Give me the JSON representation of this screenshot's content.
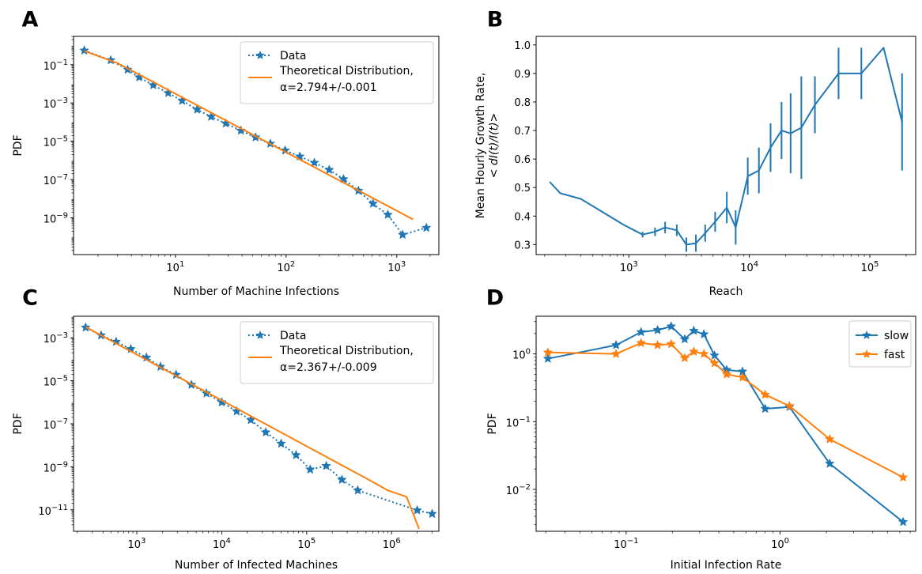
{
  "chart_data": [
    {
      "panel": "A",
      "type": "line",
      "xscale": "log",
      "yscale": "log",
      "xlim": [
        1.2,
        2400
      ],
      "ylim": [
        1.2e-11,
        3
      ],
      "xticks": [
        {
          "v": 10,
          "base": "10",
          "exp": "1"
        },
        {
          "v": 100,
          "base": "10",
          "exp": "2"
        },
        {
          "v": 1000,
          "base": "10",
          "exp": "3"
        }
      ],
      "yticks": [
        {
          "v": 0.1,
          "base": "10",
          "exp": "−1"
        },
        {
          "v": 0.001,
          "base": "10",
          "exp": "−3"
        },
        {
          "v": 1e-05,
          "base": "10",
          "exp": "−5"
        },
        {
          "v": 1e-07,
          "base": "10",
          "exp": "−7"
        },
        {
          "v": 1e-09,
          "base": "10",
          "exp": "−9"
        }
      ],
      "xlabel": "Number of Machine Infections",
      "ylabel": "PDF",
      "legend": {
        "position": "top-right",
        "entries": [
          "Data",
          "Theoretical Distribution,",
          "α=2.794+/-0.001"
        ]
      },
      "series": [
        {
          "name": "Data",
          "style": "dotted-star",
          "color": "#1f77b4",
          "x": [
            1.5,
            2.6,
            3.7,
            4.7,
            6.3,
            8.6,
            11.5,
            15.7,
            21,
            28.5,
            39,
            53,
            72,
            98,
            133,
            180,
            245,
            330,
            450,
            610,
            830,
            1130,
            1850
          ],
          "y": [
            0.55,
            0.17,
            0.055,
            0.022,
            0.0085,
            0.0033,
            0.0013,
            0.00045,
            0.00019,
            8.5e-05,
            3.6e-05,
            1.6e-05,
            7.5e-06,
            3.3e-06,
            1.6e-06,
            7.5e-07,
            3.2e-07,
            1.05e-07,
            2.6e-08,
            5.5e-09,
            1.45e-09,
            1.3e-10,
            3e-10
          ]
        },
        {
          "name": "Theoretical Distribution",
          "style": "solid",
          "color": "#ff7f0e",
          "x": [
            1.5,
            3,
            1400
          ],
          "y": [
            0.52,
            0.12,
            8.3e-10
          ]
        }
      ]
    },
    {
      "panel": "B",
      "type": "line",
      "xscale": "log",
      "yscale": "linear",
      "xlim": [
        170,
        240000
      ],
      "ylim": [
        0.265,
        1.03
      ],
      "xticks": [
        {
          "v": 1000,
          "base": "10",
          "exp": "3"
        },
        {
          "v": 10000,
          "base": "10",
          "exp": "4"
        },
        {
          "v": 100000,
          "base": "10",
          "exp": "5"
        }
      ],
      "yticks": [
        {
          "v": 0.3,
          "label": "0.3"
        },
        {
          "v": 0.4,
          "label": "0.4"
        },
        {
          "v": 0.5,
          "label": "0.5"
        },
        {
          "v": 0.6,
          "label": "0.6"
        },
        {
          "v": 0.7,
          "label": "0.7"
        },
        {
          "v": 0.8,
          "label": "0.8"
        },
        {
          "v": 0.9,
          "label": "0.9"
        },
        {
          "v": 1.0,
          "label": "1.0"
        }
      ],
      "xlabel": "Reach",
      "ylabel_line1": "Mean Hourly Growth Rate,",
      "ylabel_line2": "< dI(t)/I(t)>",
      "series": [
        {
          "name": "",
          "style": "solid-errorbar",
          "color": "#1f77b4",
          "x": [
            220,
            270,
            400,
            600,
            900,
            1300,
            1650,
            2000,
            2500,
            3000,
            3600,
            4300,
            5200,
            6500,
            7700,
            9700,
            12000,
            15000,
            18500,
            22000,
            27000,
            35000,
            55000,
            85000,
            130000,
            185000
          ],
          "y": [
            0.52,
            0.48,
            0.46,
            0.415,
            0.37,
            0.335,
            0.345,
            0.36,
            0.35,
            0.3,
            0.305,
            0.34,
            0.38,
            0.43,
            0.36,
            0.54,
            0.56,
            0.64,
            0.7,
            0.69,
            0.71,
            0.79,
            0.9,
            0.9,
            0.99,
            0.73
          ],
          "err": [
            0,
            0,
            0,
            0,
            0,
            0.01,
            0.015,
            0.02,
            0.02,
            0.025,
            0.03,
            0.03,
            0.035,
            0.055,
            0.06,
            0.065,
            0.08,
            0.085,
            0.1,
            0.14,
            0.18,
            0.1,
            0.09,
            0.09,
            0,
            0.17
          ]
        }
      ]
    },
    {
      "panel": "C",
      "type": "line",
      "xscale": "log",
      "yscale": "log",
      "xlim": [
        180,
        3600000
      ],
      "ylim": [
        1e-12,
        0.01
      ],
      "xticks": [
        {
          "v": 1000,
          "base": "10",
          "exp": "3"
        },
        {
          "v": 10000,
          "base": "10",
          "exp": "4"
        },
        {
          "v": 100000,
          "base": "10",
          "exp": "5"
        },
        {
          "v": 1000000,
          "base": "10",
          "exp": "6"
        }
      ],
      "yticks": [
        {
          "v": 0.001,
          "base": "10",
          "exp": "−3"
        },
        {
          "v": 1e-05,
          "base": "10",
          "exp": "−5"
        },
        {
          "v": 1e-07,
          "base": "10",
          "exp": "−7"
        },
        {
          "v": 1e-09,
          "base": "10",
          "exp": "−9"
        },
        {
          "v": 1e-11,
          "base": "10",
          "exp": "−11"
        }
      ],
      "xlabel": "Number of Infected Machines",
      "ylabel": "PDF",
      "legend": {
        "position": "top-right",
        "entries": [
          "Data",
          "Theoretical Distribution,",
          "α=2.367+/-0.009"
        ]
      },
      "series": [
        {
          "name": "Data",
          "style": "dotted-star",
          "color": "#1f77b4",
          "x": [
            250,
            380,
            570,
            850,
            1300,
            1900,
            2900,
            4400,
            6600,
            10000,
            15000,
            22000,
            33000,
            50000,
            75000,
            110000,
            170000,
            260000,
            400000,
            2000000,
            3000000
          ],
          "y": [
            0.003,
            0.0013,
            0.00065,
            0.0003,
            0.00012,
            4.5e-05,
            1.9e-05,
            6.5e-06,
            2.6e-06,
            1e-06,
            3.8e-07,
            1.5e-07,
            4e-08,
            1.2e-08,
            3.5e-09,
            7.5e-10,
            1.1e-09,
            2.5e-10,
            8e-11,
            9.5e-12,
            6.5e-12
          ]
        },
        {
          "name": "Theoretical Distribution",
          "style": "solid",
          "color": "#ff7f0e",
          "x": [
            250,
            560000,
            900000,
            1500000,
            2100000
          ],
          "y": [
            0.0032,
            2.3e-10,
            8e-11,
            4e-11,
            1.3e-12
          ]
        }
      ]
    },
    {
      "panel": "D",
      "type": "line",
      "xscale": "log",
      "yscale": "log",
      "xlim": [
        0.026,
        7.6
      ],
      "ylim": [
        0.0024,
        3.6
      ],
      "xticks": [
        {
          "v": 0.1,
          "base": "10",
          "exp": "−1"
        },
        {
          "v": 1,
          "base": "10",
          "exp": "0"
        }
      ],
      "yticks": [
        {
          "v": 1,
          "base": "10",
          "exp": "0"
        },
        {
          "v": 0.1,
          "base": "10",
          "exp": "−1"
        },
        {
          "v": 0.01,
          "base": "10",
          "exp": "−2"
        }
      ],
      "xlabel": "Initial Infection Rate",
      "ylabel": "PDF",
      "legend": {
        "position": "top-right",
        "entries": [
          "slow",
          "fast"
        ]
      },
      "series": [
        {
          "name": "slow",
          "style": "solid-star",
          "color": "#1f77b4",
          "x": [
            0.031,
            0.086,
            0.125,
            0.16,
            0.196,
            0.24,
            0.275,
            0.32,
            0.375,
            0.45,
            0.57,
            0.8,
            1.15,
            2.1,
            6.3
          ],
          "y": [
            0.85,
            1.35,
            2.1,
            2.25,
            2.55,
            1.65,
            2.2,
            1.95,
            0.95,
            0.58,
            0.55,
            0.155,
            0.165,
            0.024,
            0.0033
          ]
        },
        {
          "name": "fast",
          "style": "solid-star",
          "color": "#ff7f0e",
          "x": [
            0.031,
            0.086,
            0.125,
            0.16,
            0.196,
            0.24,
            0.275,
            0.32,
            0.375,
            0.45,
            0.57,
            0.8,
            1.15,
            2.1,
            6.3
          ],
          "y": [
            1.05,
            1.0,
            1.45,
            1.35,
            1.4,
            0.87,
            1.08,
            1.0,
            0.73,
            0.5,
            0.45,
            0.25,
            0.17,
            0.055,
            0.015
          ]
        }
      ]
    }
  ]
}
